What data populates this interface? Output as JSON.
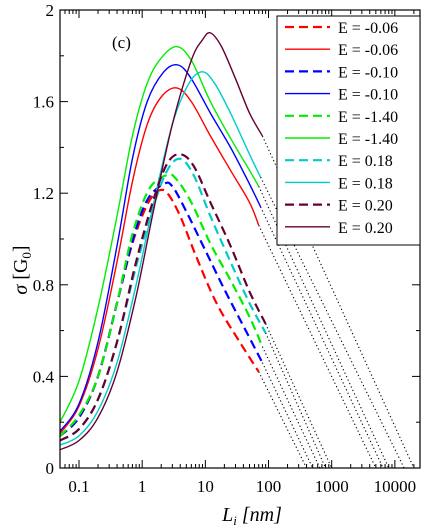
{
  "chart_data": {
    "type": "line",
    "panel_label": "(c)",
    "xlabel": {
      "main": "L",
      "sub": "i",
      "unit": " [nm]"
    },
    "ylabel": {
      "main": "σ",
      "unit_open": " [G",
      "unit_sub": "0",
      "unit_close": "]"
    },
    "x_scale": "log",
    "xlim": [
      0.05,
      25000
    ],
    "ylim": [
      0,
      2
    ],
    "x_ticks": [
      {
        "value": 0.1,
        "label": "0.1"
      },
      {
        "value": 1,
        "label": "1"
      },
      {
        "value": 10,
        "label": "10"
      },
      {
        "value": 100,
        "label": "100"
      },
      {
        "value": 1000,
        "label": "1000"
      },
      {
        "value": 10000,
        "label": "10000"
      }
    ],
    "y_ticks": [
      {
        "value": 0,
        "label": "0"
      },
      {
        "value": 0.4,
        "label": "0.4"
      },
      {
        "value": 0.8,
        "label": "0.8"
      },
      {
        "value": 1.2,
        "label": "1.2"
      },
      {
        "value": 1.6,
        "label": "1.6"
      },
      {
        "value": 2,
        "label": "2"
      }
    ],
    "legend_position": "top-right",
    "extrapolation_style": "dotted black",
    "series": [
      {
        "label": "E = -0.06",
        "color": "#ff0000",
        "dash": true,
        "points": [
          [
            0.05,
            0.14
          ],
          [
            0.1,
            0.22
          ],
          [
            0.2,
            0.4
          ],
          [
            0.4,
            0.72
          ],
          [
            0.7,
            0.98
          ],
          [
            1.2,
            1.15
          ],
          [
            1.8,
            1.21
          ],
          [
            2.5,
            1.2
          ],
          [
            4,
            1.1
          ],
          [
            7,
            0.93
          ],
          [
            15,
            0.72
          ],
          [
            35,
            0.55
          ],
          [
            70,
            0.42
          ]
        ],
        "extrap": [
          [
            70,
            0.42
          ],
          [
            400,
            0
          ]
        ]
      },
      {
        "label": "E = -0.06",
        "color": "#ff0000",
        "dash": false,
        "points": [
          [
            0.05,
            0.15
          ],
          [
            0.1,
            0.27
          ],
          [
            0.2,
            0.52
          ],
          [
            0.4,
            0.9
          ],
          [
            0.7,
            1.25
          ],
          [
            1.2,
            1.5
          ],
          [
            2,
            1.62
          ],
          [
            3.5,
            1.66
          ],
          [
            6,
            1.6
          ],
          [
            12,
            1.45
          ],
          [
            25,
            1.3
          ],
          [
            50,
            1.16
          ],
          [
            70,
            1.06
          ]
        ],
        "extrap": [
          [
            70,
            1.06
          ],
          [
            5000,
            0
          ]
        ]
      },
      {
        "label": "E = -0.10",
        "color": "#0000ff",
        "dash": true,
        "points": [
          [
            0.05,
            0.14
          ],
          [
            0.1,
            0.22
          ],
          [
            0.2,
            0.4
          ],
          [
            0.4,
            0.72
          ],
          [
            0.7,
            0.99
          ],
          [
            1.2,
            1.17
          ],
          [
            2.2,
            1.24
          ],
          [
            3,
            1.23
          ],
          [
            5,
            1.12
          ],
          [
            10,
            0.95
          ],
          [
            20,
            0.78
          ],
          [
            40,
            0.62
          ],
          [
            80,
            0.46
          ]
        ],
        "extrap": [
          [
            80,
            0.46
          ],
          [
            500,
            0
          ]
        ]
      },
      {
        "label": "E = -0.10",
        "color": "#0000ff",
        "dash": false,
        "points": [
          [
            0.05,
            0.16
          ],
          [
            0.1,
            0.28
          ],
          [
            0.2,
            0.55
          ],
          [
            0.4,
            0.97
          ],
          [
            0.7,
            1.35
          ],
          [
            1.2,
            1.6
          ],
          [
            2.2,
            1.73
          ],
          [
            3.7,
            1.76
          ],
          [
            6,
            1.7
          ],
          [
            12,
            1.55
          ],
          [
            25,
            1.4
          ],
          [
            50,
            1.24
          ],
          [
            75,
            1.14
          ]
        ],
        "extrap": [
          [
            75,
            1.14
          ],
          [
            6500,
            0
          ]
        ]
      },
      {
        "label": "E = -1.40",
        "color": "#00ee00",
        "dash": true,
        "points": [
          [
            0.05,
            0.14
          ],
          [
            0.1,
            0.23
          ],
          [
            0.2,
            0.4
          ],
          [
            0.4,
            0.72
          ],
          [
            0.7,
            1.02
          ],
          [
            1.3,
            1.22
          ],
          [
            2.5,
            1.28
          ],
          [
            3.5,
            1.26
          ],
          [
            6,
            1.16
          ],
          [
            12,
            0.98
          ],
          [
            25,
            0.82
          ],
          [
            50,
            0.66
          ],
          [
            80,
            0.53
          ]
        ],
        "extrap": [
          [
            80,
            0.53
          ],
          [
            650,
            0
          ]
        ]
      },
      {
        "label": "E = -1.40",
        "color": "#00ee00",
        "dash": false,
        "points": [
          [
            0.05,
            0.2
          ],
          [
            0.1,
            0.38
          ],
          [
            0.2,
            0.7
          ],
          [
            0.4,
            1.1
          ],
          [
            0.7,
            1.45
          ],
          [
            1.2,
            1.68
          ],
          [
            2,
            1.79
          ],
          [
            3.5,
            1.84
          ],
          [
            6,
            1.78
          ],
          [
            12,
            1.6
          ],
          [
            25,
            1.44
          ],
          [
            50,
            1.3
          ],
          [
            70,
            1.23
          ]
        ],
        "extrap": [
          [
            70,
            1.23
          ],
          [
            8000,
            0
          ]
        ]
      },
      {
        "label": "E = 0.18",
        "color": "#00cccc",
        "dash": true,
        "points": [
          [
            0.05,
            0.12
          ],
          [
            0.1,
            0.17
          ],
          [
            0.2,
            0.3
          ],
          [
            0.4,
            0.55
          ],
          [
            0.8,
            0.88
          ],
          [
            1.5,
            1.14
          ],
          [
            2.5,
            1.3
          ],
          [
            4,
            1.35
          ],
          [
            6.5,
            1.28
          ],
          [
            12,
            1.1
          ],
          [
            25,
            0.9
          ],
          [
            50,
            0.72
          ],
          [
            90,
            0.59
          ]
        ],
        "extrap": [
          [
            90,
            0.59
          ],
          [
            800,
            0
          ]
        ]
      },
      {
        "label": "E = 0.18",
        "color": "#00cccc",
        "dash": false,
        "points": [
          [
            0.05,
            0.1
          ],
          [
            0.1,
            0.14
          ],
          [
            0.2,
            0.25
          ],
          [
            0.4,
            0.46
          ],
          [
            0.8,
            0.8
          ],
          [
            1.5,
            1.15
          ],
          [
            3,
            1.5
          ],
          [
            5.5,
            1.68
          ],
          [
            9,
            1.73
          ],
          [
            14,
            1.68
          ],
          [
            25,
            1.55
          ],
          [
            50,
            1.37
          ],
          [
            75,
            1.27
          ]
        ],
        "extrap": [
          [
            75,
            1.27
          ],
          [
            14000,
            0
          ]
        ]
      },
      {
        "label": "E = 0.20",
        "color": "#660033",
        "dash": true,
        "points": [
          [
            0.05,
            0.12
          ],
          [
            0.1,
            0.17
          ],
          [
            0.2,
            0.3
          ],
          [
            0.4,
            0.55
          ],
          [
            0.8,
            0.9
          ],
          [
            1.5,
            1.17
          ],
          [
            2.5,
            1.33
          ],
          [
            4,
            1.37
          ],
          [
            6.5,
            1.32
          ],
          [
            12,
            1.16
          ],
          [
            25,
            0.97
          ],
          [
            50,
            0.77
          ],
          [
            90,
            0.63
          ]
        ],
        "extrap": [
          [
            90,
            0.63
          ],
          [
            1000,
            0
          ]
        ]
      },
      {
        "label": "E = 0.20",
        "color": "#660033",
        "dash": false,
        "points": [
          [
            0.05,
            0.08
          ],
          [
            0.1,
            0.12
          ],
          [
            0.2,
            0.22
          ],
          [
            0.4,
            0.42
          ],
          [
            0.8,
            0.75
          ],
          [
            1.5,
            1.12
          ],
          [
            3,
            1.5
          ],
          [
            6,
            1.78
          ],
          [
            9,
            1.87
          ],
          [
            12,
            1.9
          ],
          [
            18,
            1.84
          ],
          [
            30,
            1.7
          ],
          [
            50,
            1.55
          ],
          [
            80,
            1.45
          ]
        ],
        "extrap": [
          [
            80,
            1.45
          ],
          [
            20000,
            0
          ]
        ]
      }
    ]
  }
}
